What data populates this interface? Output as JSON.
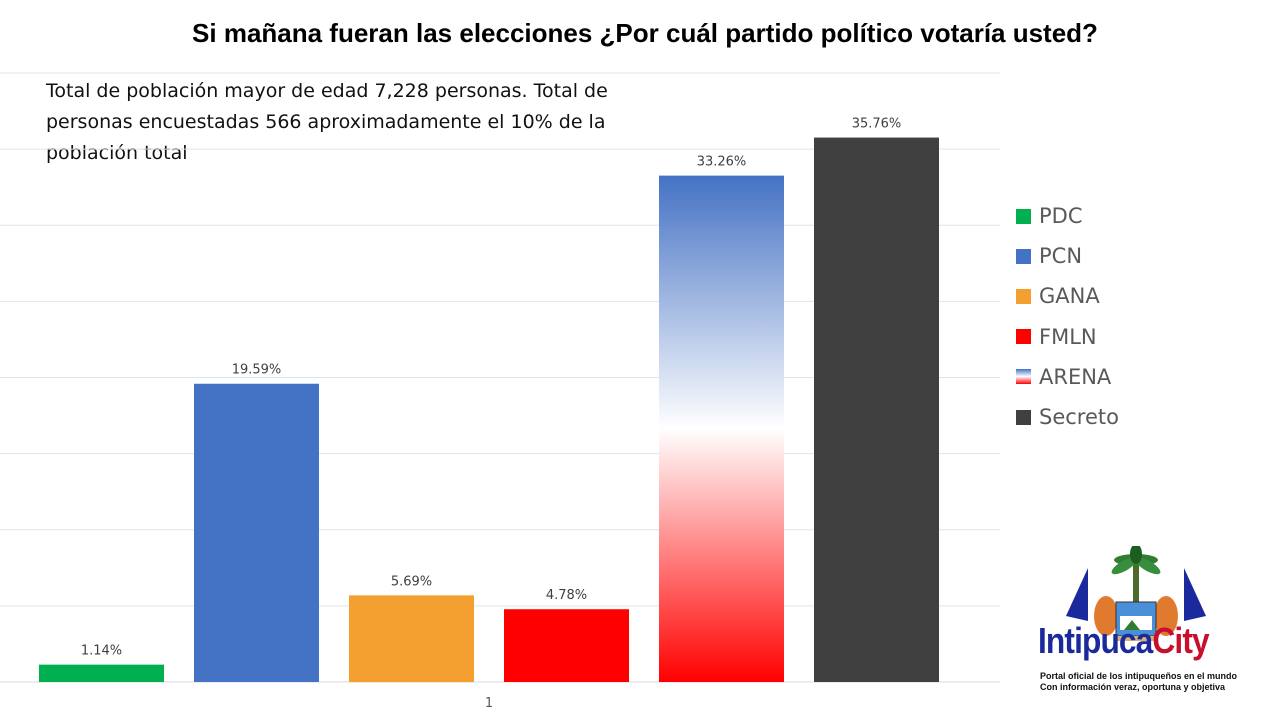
{
  "title": "Si mañana fueran las elecciones ¿Por cuál partido político votaría usted?",
  "note": "Total de población mayor de edad 7,228 personas. Total de personas encuestadas 566 aproximadamente el 10% de la población total",
  "chart_data": {
    "type": "bar",
    "title": "Si mañana fueran las elecciones ¿Por cuál partido político votaría usted?",
    "categories": [
      "1"
    ],
    "series": [
      {
        "name": "PDC",
        "values": [
          1.14
        ],
        "label": "1.14%",
        "color": "#00b050"
      },
      {
        "name": "PCN",
        "values": [
          19.59
        ],
        "label": "19.59%",
        "color": "#4472c4"
      },
      {
        "name": "GANA",
        "values": [
          5.69
        ],
        "label": "5.69%",
        "color": "#f4a030"
      },
      {
        "name": "FMLN",
        "values": [
          4.78
        ],
        "label": "4.78%",
        "color": "#ff0000"
      },
      {
        "name": "ARENA",
        "values": [
          33.26
        ],
        "label": "33.26%",
        "gradient": [
          "#4472c4",
          "#ffffff",
          "#ff0000"
        ]
      },
      {
        "name": "Secreto",
        "values": [
          35.76
        ],
        "label": "35.76%",
        "color": "#404040"
      }
    ],
    "ylim": [
      0,
      40
    ],
    "grid": true,
    "legend_position": "right",
    "y_tick_labels_shown": false,
    "x_tick_label": "1"
  },
  "legend": {
    "items": [
      {
        "label": "PDC",
        "color": "#00b050"
      },
      {
        "label": "PCN",
        "color": "#4472c4"
      },
      {
        "label": "GANA",
        "color": "#f4a030"
      },
      {
        "label": "FMLN",
        "color": "#ff0000"
      },
      {
        "label": "ARENA",
        "gradient": true
      },
      {
        "label": "Secreto",
        "color": "#404040"
      }
    ]
  },
  "logo": {
    "name_part1": "Intipuca",
    "name_part2": "City",
    "tagline_line1": "Portal oficial de los intipuqueños en el mundo",
    "tagline_line2": "Con información veraz, oportuna y objetiva"
  }
}
